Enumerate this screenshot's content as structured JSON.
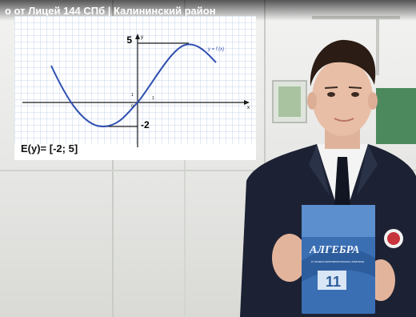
{
  "video": {
    "title": "о от Лицей 144 СПб | Калининский район"
  },
  "graph": {
    "function_label": "y = f (x)",
    "axis_x_label": "x",
    "axis_y_label": "y",
    "origin_label": "0",
    "unit_x_label": "1",
    "unit_y_label": "1",
    "max_label": "5",
    "min_label": "-2",
    "range_text": "E(y)= [-2; 5]"
  },
  "book": {
    "title": "АЛГЕБРА",
    "subtitle": "и начала математического анализа",
    "grade": "11"
  },
  "colors": {
    "curve": "#2f4fb0",
    "grid": "#b9c8e6",
    "axis": "#1a1a1a",
    "suit": "#1c2233",
    "book_blue": "#3a6fb4"
  }
}
